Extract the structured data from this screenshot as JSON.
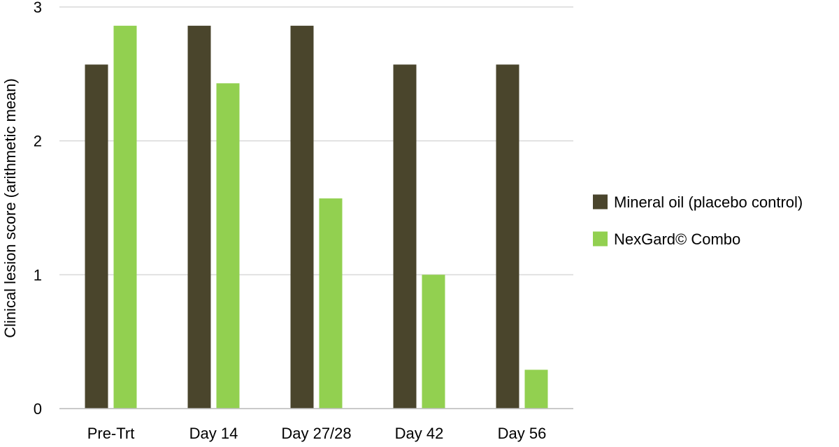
{
  "chart_data": {
    "type": "bar",
    "title": "",
    "xlabel": "",
    "ylabel": "Clinical lesion score (arithmetic mean)",
    "ylim": [
      0,
      3
    ],
    "yticks": [
      0,
      1,
      2,
      3
    ],
    "grid": true,
    "legend_position": "right",
    "categories": [
      "Pre-Trt",
      "Day 14",
      "Day 27/28",
      "Day 42",
      "Day 56"
    ],
    "series": [
      {
        "name": "Mineral oil (placebo control)",
        "color": "#4a452c",
        "values": [
          2.57,
          2.86,
          2.86,
          2.57,
          2.57
        ]
      },
      {
        "name": "NexGard© Combo",
        "color": "#92d050",
        "values": [
          2.86,
          2.43,
          1.57,
          1.0,
          0.29
        ]
      }
    ]
  }
}
